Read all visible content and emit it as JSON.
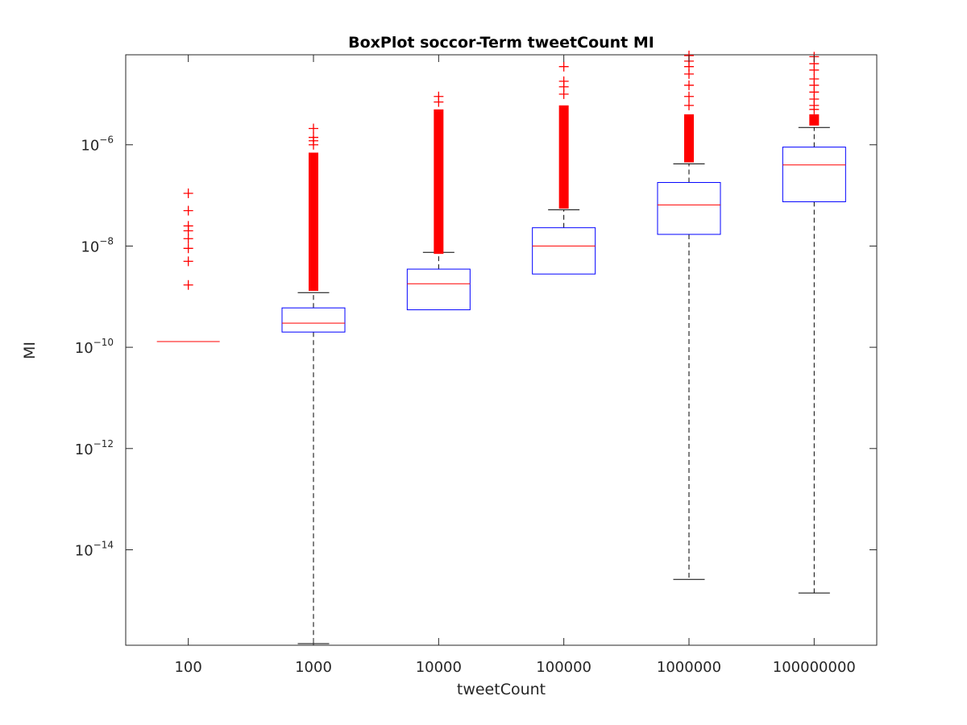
{
  "chart_data": {
    "type": "boxplot",
    "title": "BoxPlot soccor-Term tweetCount MI",
    "xlabel": "tweetCount",
    "ylabel": "MI",
    "yscale": "log",
    "ylim": [
      1.3e-16,
      6e-05
    ],
    "yticks": [
      {
        "value": 1e-14,
        "base": "10",
        "exp": "−14"
      },
      {
        "value": 1e-12,
        "base": "10",
        "exp": "−12"
      },
      {
        "value": 1e-10,
        "base": "10",
        "exp": "−10"
      },
      {
        "value": 1e-08,
        "base": "10",
        "exp": "−8"
      },
      {
        "value": 1e-06,
        "base": "10",
        "exp": "−6"
      }
    ],
    "grid": false,
    "colors": {
      "box": "#0000ff",
      "median": "#ff0000",
      "whisker": "#000000",
      "outlier": "#ff0000",
      "axis": "#262626"
    },
    "categories": [
      "100",
      "1000",
      "10000",
      "100000",
      "1000000",
      "100000000"
    ],
    "boxes": [
      {
        "category": "100",
        "q1": 1.3e-10,
        "median": 1.3e-10,
        "q3": 1.3e-10,
        "whisker_low": 1.3e-10,
        "whisker_high": 1.3e-10,
        "outliers": [
          1.7e-09,
          5e-09,
          9e-09,
          1.4e-08,
          2e-08,
          2.5e-08,
          5e-08,
          1.1e-07
        ]
      },
      {
        "category": "1000",
        "q1": 2e-10,
        "median": 3e-10,
        "q3": 6e-10,
        "whisker_low": 1.4e-16,
        "whisker_high": 1.2e-09,
        "outlier_range": [
          1.3e-09,
          7e-07
        ],
        "outliers": [
          1e-06,
          1.2e-06,
          1.4e-06,
          2.1e-06
        ]
      },
      {
        "category": "10000",
        "q1": 5.5e-10,
        "median": 1.8e-09,
        "q3": 3.5e-09,
        "whisker_low": 5.5e-10,
        "whisker_high": 7.5e-09,
        "outlier_range": [
          7e-09,
          5e-06
        ],
        "outliers": [
          7e-06,
          9e-06
        ]
      },
      {
        "category": "100000",
        "q1": 2.8e-09,
        "median": 1e-08,
        "q3": 2.3e-08,
        "whisker_low": 2.8e-09,
        "whisker_high": 5.2e-08,
        "outlier_range": [
          5.5e-08,
          6e-06
        ],
        "outliers": [
          1e-05,
          1.4e-05,
          1.8e-05,
          3.5e-05
        ]
      },
      {
        "category": "1000000",
        "q1": 1.7e-08,
        "median": 6.5e-08,
        "q3": 1.8e-07,
        "whisker_low": 2.6e-15,
        "whisker_high": 4.2e-07,
        "outlier_range": [
          4.5e-07,
          4e-06
        ],
        "outliers": [
          6e-06,
          9e-06,
          1.5e-05,
          2.5e-05,
          3.5e-05,
          4.5e-05,
          5.8e-05
        ]
      },
      {
        "category": "100000000",
        "q1": 7.5e-08,
        "median": 4e-07,
        "q3": 9e-07,
        "whisker_low": 1.4e-15,
        "whisker_high": 2.2e-06,
        "outlier_range": [
          2.4e-06,
          4e-06
        ],
        "outliers": [
          5e-06,
          6e-06,
          8e-06,
          1.1e-05,
          1.5e-05,
          2e-05,
          3e-05,
          4e-05,
          5.5e-05
        ]
      }
    ]
  }
}
